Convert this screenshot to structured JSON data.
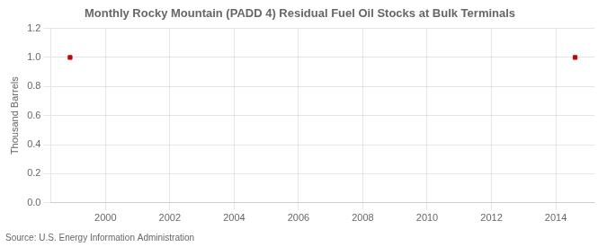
{
  "chart_data": {
    "type": "scatter",
    "title": "Monthly Rocky Mountain (PADD 4) Residual Fuel Oil Stocks at Bulk Terminals",
    "ylabel": "Thousand Barrels",
    "annotations": [
      "Source: U.S. Energy Information Administration"
    ],
    "x": [
      1998.9,
      2014.6
    ],
    "values": [
      1.0,
      1.0
    ],
    "color": "#cc0000",
    "marker": "square",
    "xlim": [
      1998.3,
      2015.2
    ],
    "xticks": [
      2000,
      2002,
      2004,
      2006,
      2008,
      2010,
      2012,
      2014
    ],
    "ylim": [
      0.0,
      1.2
    ],
    "yticks": [
      {
        "value": 0.0,
        "label": "0.0"
      },
      0.2,
      0.4,
      0.6,
      0.8,
      {
        "value": 1.0,
        "label": "1.0"
      },
      1.2
    ],
    "grid": true
  }
}
